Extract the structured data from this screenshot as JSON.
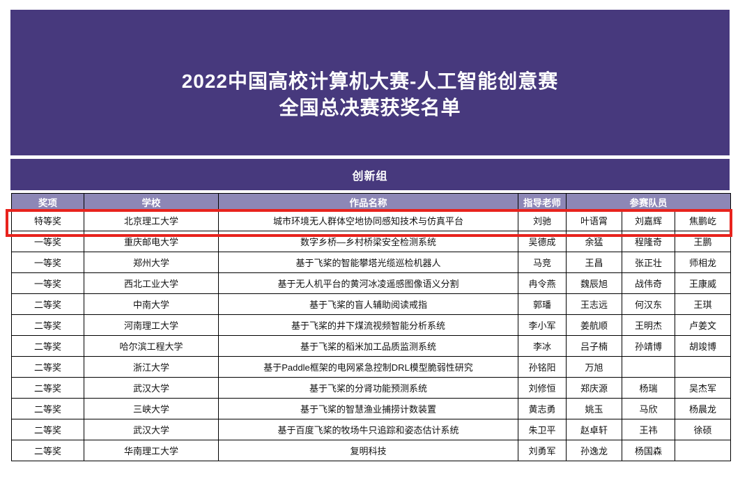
{
  "colors": {
    "banner_purple": "#47397d",
    "header_purple": "#8d87b6",
    "highlight_red": "#e8231d",
    "cell_text": "#111111"
  },
  "banner": {
    "title_line1": "2022中国高校计算机大赛-人工智能创意赛",
    "title_line2": "全国总决赛获奖名单"
  },
  "section": {
    "label": "创新组"
  },
  "table": {
    "headers": {
      "award": "奖项",
      "school": "学校",
      "project": "作品名称",
      "advisor": "指导老师",
      "members": "参赛队员"
    },
    "rows": [
      {
        "award": "特等奖",
        "school": "北京理工大学",
        "project": "城市环境无人群体空地协同感知技术与仿真平台",
        "advisor": "刘驰",
        "members": [
          "叶语霄",
          "刘嘉辉",
          "焦鹏屹"
        ],
        "highlighted": true
      },
      {
        "award": "一等奖",
        "school": "重庆邮电大学",
        "project": "数字乡桥—乡村桥梁安全检测系统",
        "advisor": "吴德成",
        "members": [
          "余猛",
          "程隆奇",
          "王鹏"
        ],
        "highlighted": false
      },
      {
        "award": "一等奖",
        "school": "郑州大学",
        "project": "基于飞桨的智能攀塔光缆巡检机器人",
        "advisor": "马竞",
        "members": [
          "王昌",
          "张正壮",
          "师相龙"
        ],
        "highlighted": false
      },
      {
        "award": "一等奖",
        "school": "西北工业大学",
        "project": "基于无人机平台的黄河冰凌遥感图像语义分割",
        "advisor": "冉令燕",
        "members": [
          "魏辰旭",
          "战伟奇",
          "王康威"
        ],
        "highlighted": false
      },
      {
        "award": "二等奖",
        "school": "中南大学",
        "project": "基于飞桨的盲人辅助阅读戒指",
        "advisor": "郭璠",
        "members": [
          "王志远",
          "何汉东",
          "王琪"
        ],
        "highlighted": false
      },
      {
        "award": "二等奖",
        "school": "河南理工大学",
        "project": "基于飞桨的井下煤流视频智能分析系统",
        "advisor": "李小军",
        "members": [
          "姜航顺",
          "王明杰",
          "卢姜文"
        ],
        "highlighted": false
      },
      {
        "award": "二等奖",
        "school": "哈尔滨工程大学",
        "project": "基于飞桨的稻米加工品质监测系统",
        "advisor": "李冰",
        "members": [
          "吕子楠",
          "孙靖博",
          "胡竣博"
        ],
        "highlighted": false
      },
      {
        "award": "二等奖",
        "school": "浙江大学",
        "project": "基于Paddle框架的电网紧急控制DRL模型脆弱性研究",
        "advisor": "孙铭阳",
        "members": [
          "万旭",
          "",
          ""
        ],
        "highlighted": false
      },
      {
        "award": "二等奖",
        "school": "武汉大学",
        "project": "基于飞桨的分肾功能预测系统",
        "advisor": "刘修恒",
        "members": [
          "郑庆源",
          "杨瑞",
          "吴杰军"
        ],
        "highlighted": false
      },
      {
        "award": "二等奖",
        "school": "三峡大学",
        "project": "基于飞桨的智慧渔业捕捞计数装置",
        "advisor": "黄志勇",
        "members": [
          "姚玉",
          "马欣",
          "杨晨龙"
        ],
        "highlighted": false
      },
      {
        "award": "二等奖",
        "school": "武汉大学",
        "project": "基于百度飞桨的牧场牛只追踪和姿态估计系统",
        "advisor": "朱卫平",
        "members": [
          "赵卓轩",
          "王祎",
          "徐硕"
        ],
        "highlighted": false
      },
      {
        "award": "二等奖",
        "school": "华南理工大学",
        "project": "复明科技",
        "advisor": "刘勇军",
        "members": [
          "孙逸龙",
          "杨国森",
          ""
        ],
        "highlighted": false
      }
    ]
  }
}
